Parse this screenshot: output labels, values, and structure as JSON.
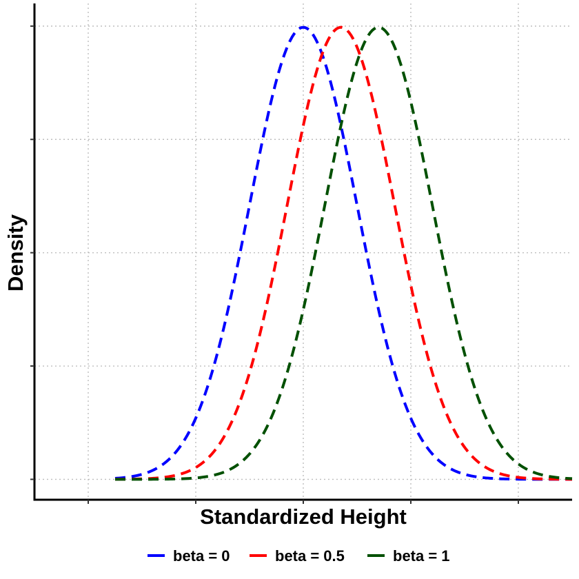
{
  "chart_data": {
    "type": "line",
    "xlabel": "Standardized Height",
    "ylabel": "Density",
    "xlim": [
      -5,
      5
    ],
    "ylim": [
      -0.018,
      0.42
    ],
    "x_ticks": [
      -4,
      -2,
      0,
      2,
      4
    ],
    "y_ticks": [
      0,
      0.1,
      0.2,
      0.3,
      0.4
    ],
    "tick_labels_shown": false,
    "grid": true,
    "line_style": "dashed",
    "legend_position": "bottom",
    "series": [
      {
        "name": "beta = 0",
        "color": "#0000ff",
        "mean": 0.0,
        "sd": 1,
        "x": [
          -3.5,
          -3,
          -2.5,
          -2,
          -1.5,
          -1,
          -0.5,
          0,
          0.5,
          1,
          1.5,
          2,
          2.5,
          3,
          3.5,
          4,
          4.5,
          5
        ],
        "y": [
          0.001,
          0.004,
          0.018,
          0.054,
          0.13,
          0.242,
          0.352,
          0.399,
          0.352,
          0.242,
          0.13,
          0.054,
          0.018,
          0.004,
          0.001,
          0.0,
          0.0,
          0.0
        ]
      },
      {
        "name": "beta = 0.5",
        "color": "#ff0000",
        "mean": 0.7,
        "sd": 1,
        "x": [
          -3.5,
          -3,
          -2.5,
          -2,
          -1.5,
          -1,
          -0.5,
          0,
          0.5,
          1,
          1.5,
          2,
          2.5,
          3,
          3.5,
          4,
          4.5,
          5
        ],
        "y": [
          0.0,
          0.001,
          0.002,
          0.01,
          0.035,
          0.094,
          0.194,
          0.312,
          0.391,
          0.381,
          0.29,
          0.171,
          0.079,
          0.028,
          0.008,
          0.002,
          0.0,
          0.0
        ]
      },
      {
        "name": "beta = 1",
        "color": "#005000",
        "mean": 1.4,
        "sd": 1,
        "x": [
          -3.5,
          -3,
          -2.5,
          -2,
          -1.5,
          -1,
          -0.5,
          0,
          0.5,
          1,
          1.5,
          2,
          2.5,
          3,
          3.5,
          4,
          4.5,
          5
        ],
        "y": [
          0.0,
          0.0,
          0.0,
          0.001,
          0.006,
          0.022,
          0.066,
          0.15,
          0.266,
          0.368,
          0.397,
          0.333,
          0.218,
          0.111,
          0.044,
          0.014,
          0.003,
          0.001
        ]
      }
    ]
  }
}
